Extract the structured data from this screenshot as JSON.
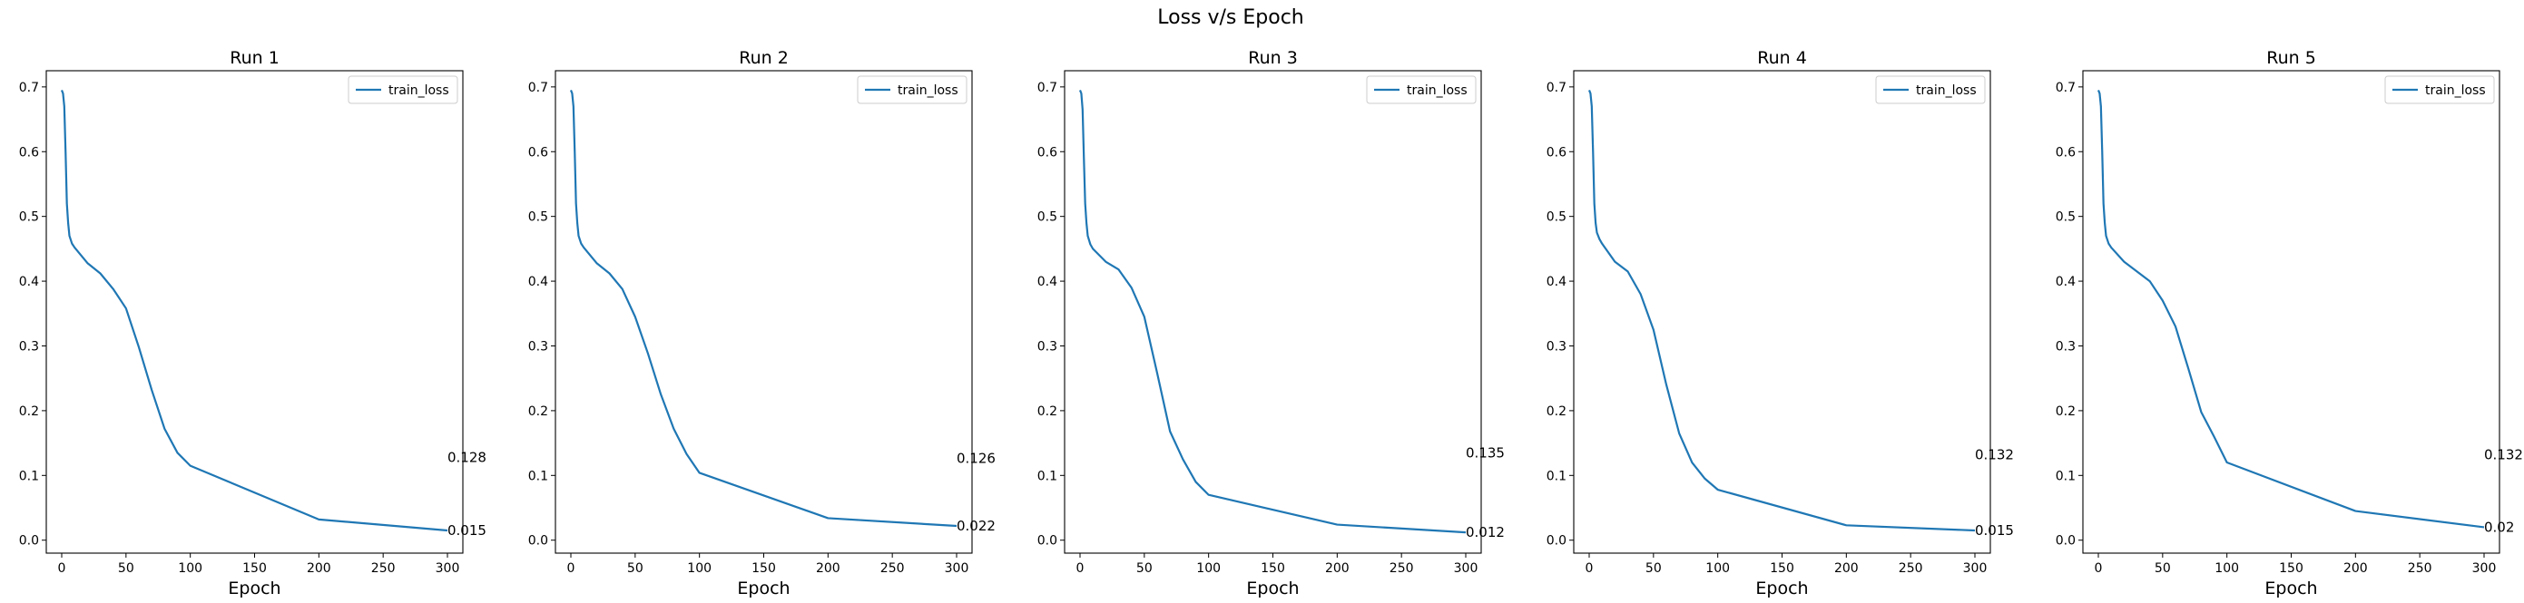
{
  "figure": {
    "title": "Loss v/s Epoch"
  },
  "chart_data": [
    {
      "type": "line",
      "title": "Run 1",
      "xlabel": "Epoch",
      "ylabel": "",
      "legend": "top-right",
      "grid": false,
      "xlim": [
        -12,
        312
      ],
      "ylim": [
        -0.02,
        0.725
      ],
      "xticks": [
        0,
        50,
        100,
        150,
        200,
        250,
        300
      ],
      "yticks": [
        0.0,
        0.1,
        0.2,
        0.3,
        0.4,
        0.5,
        0.6,
        0.7
      ],
      "series": [
        {
          "name": "train_loss",
          "color": "#1f77b4",
          "x": [
            0,
            1,
            2,
            3,
            4,
            5,
            6,
            8,
            10,
            20,
            30,
            40,
            50,
            60,
            70,
            80,
            90,
            100,
            200,
            300
          ],
          "y": [
            0.695,
            0.69,
            0.67,
            0.6,
            0.52,
            0.49,
            0.47,
            0.458,
            0.452,
            0.428,
            0.412,
            0.388,
            0.358,
            0.298,
            0.232,
            0.172,
            0.135,
            0.115,
            0.032,
            0.015
          ]
        }
      ],
      "annotations": [
        {
          "x": 300,
          "y": 0.128,
          "text": "0.128"
        },
        {
          "x": 300,
          "y": 0.015,
          "text": "0.015"
        }
      ]
    },
    {
      "type": "line",
      "title": "Run 2",
      "xlabel": "Epoch",
      "ylabel": "",
      "legend": "top-right",
      "grid": false,
      "xlim": [
        -12,
        312
      ],
      "ylim": [
        -0.02,
        0.725
      ],
      "xticks": [
        0,
        50,
        100,
        150,
        200,
        250,
        300
      ],
      "yticks": [
        0.0,
        0.1,
        0.2,
        0.3,
        0.4,
        0.5,
        0.6,
        0.7
      ],
      "series": [
        {
          "name": "train_loss",
          "color": "#1f77b4",
          "x": [
            0,
            1,
            2,
            3,
            4,
            5,
            6,
            8,
            10,
            20,
            30,
            40,
            50,
            60,
            70,
            80,
            90,
            100,
            200,
            300
          ],
          "y": [
            0.695,
            0.69,
            0.67,
            0.6,
            0.52,
            0.49,
            0.47,
            0.458,
            0.452,
            0.428,
            0.412,
            0.388,
            0.345,
            0.288,
            0.225,
            0.172,
            0.133,
            0.104,
            0.034,
            0.022
          ]
        }
      ],
      "annotations": [
        {
          "x": 300,
          "y": 0.126,
          "text": "0.126"
        },
        {
          "x": 300,
          "y": 0.022,
          "text": "0.022"
        }
      ]
    },
    {
      "type": "line",
      "title": "Run 3",
      "xlabel": "Epoch",
      "ylabel": "",
      "legend": "top-right",
      "grid": false,
      "xlim": [
        -12,
        312
      ],
      "ylim": [
        -0.02,
        0.725
      ],
      "xticks": [
        0,
        50,
        100,
        150,
        200,
        250,
        300
      ],
      "yticks": [
        0.0,
        0.1,
        0.2,
        0.3,
        0.4,
        0.5,
        0.6,
        0.7
      ],
      "series": [
        {
          "name": "train_loss",
          "color": "#1f77b4",
          "x": [
            0,
            1,
            2,
            3,
            4,
            5,
            6,
            8,
            10,
            20,
            30,
            40,
            50,
            60,
            70,
            80,
            90,
            100,
            200,
            300
          ],
          "y": [
            0.695,
            0.69,
            0.665,
            0.59,
            0.52,
            0.49,
            0.47,
            0.457,
            0.45,
            0.43,
            0.418,
            0.39,
            0.345,
            0.258,
            0.168,
            0.125,
            0.09,
            0.07,
            0.024,
            0.012
          ]
        }
      ],
      "annotations": [
        {
          "x": 300,
          "y": 0.135,
          "text": "0.135"
        },
        {
          "x": 300,
          "y": 0.012,
          "text": "0.012"
        }
      ]
    },
    {
      "type": "line",
      "title": "Run 4",
      "xlabel": "Epoch",
      "ylabel": "",
      "legend": "top-right",
      "grid": false,
      "xlim": [
        -12,
        312
      ],
      "ylim": [
        -0.02,
        0.725
      ],
      "xticks": [
        0,
        50,
        100,
        150,
        200,
        250,
        300
      ],
      "yticks": [
        0.0,
        0.1,
        0.2,
        0.3,
        0.4,
        0.5,
        0.6,
        0.7
      ],
      "series": [
        {
          "name": "train_loss",
          "color": "#1f77b4",
          "x": [
            0,
            1,
            2,
            3,
            4,
            5,
            6,
            8,
            10,
            20,
            30,
            40,
            50,
            60,
            70,
            80,
            90,
            100,
            200,
            300
          ],
          "y": [
            0.695,
            0.69,
            0.67,
            0.6,
            0.52,
            0.49,
            0.475,
            0.465,
            0.458,
            0.43,
            0.415,
            0.38,
            0.325,
            0.24,
            0.165,
            0.12,
            0.095,
            0.078,
            0.023,
            0.015
          ]
        }
      ],
      "annotations": [
        {
          "x": 300,
          "y": 0.132,
          "text": "0.132"
        },
        {
          "x": 300,
          "y": 0.015,
          "text": "0.015"
        }
      ]
    },
    {
      "type": "line",
      "title": "Run 5",
      "xlabel": "Epoch",
      "ylabel": "",
      "legend": "top-right",
      "grid": false,
      "xlim": [
        -12,
        312
      ],
      "ylim": [
        -0.02,
        0.725
      ],
      "xticks": [
        0,
        50,
        100,
        150,
        200,
        250,
        300
      ],
      "yticks": [
        0.0,
        0.1,
        0.2,
        0.3,
        0.4,
        0.5,
        0.6,
        0.7
      ],
      "series": [
        {
          "name": "train_loss",
          "color": "#1f77b4",
          "x": [
            0,
            1,
            2,
            3,
            4,
            5,
            6,
            8,
            10,
            20,
            30,
            40,
            50,
            60,
            70,
            80,
            90,
            100,
            200,
            300
          ],
          "y": [
            0.695,
            0.69,
            0.67,
            0.6,
            0.52,
            0.49,
            0.47,
            0.458,
            0.452,
            0.43,
            0.415,
            0.4,
            0.37,
            0.33,
            0.265,
            0.198,
            0.16,
            0.12,
            0.045,
            0.02
          ]
        }
      ],
      "annotations": [
        {
          "x": 300,
          "y": 0.132,
          "text": "0.132"
        },
        {
          "x": 300,
          "y": 0.02,
          "text": "0.02"
        }
      ]
    }
  ]
}
